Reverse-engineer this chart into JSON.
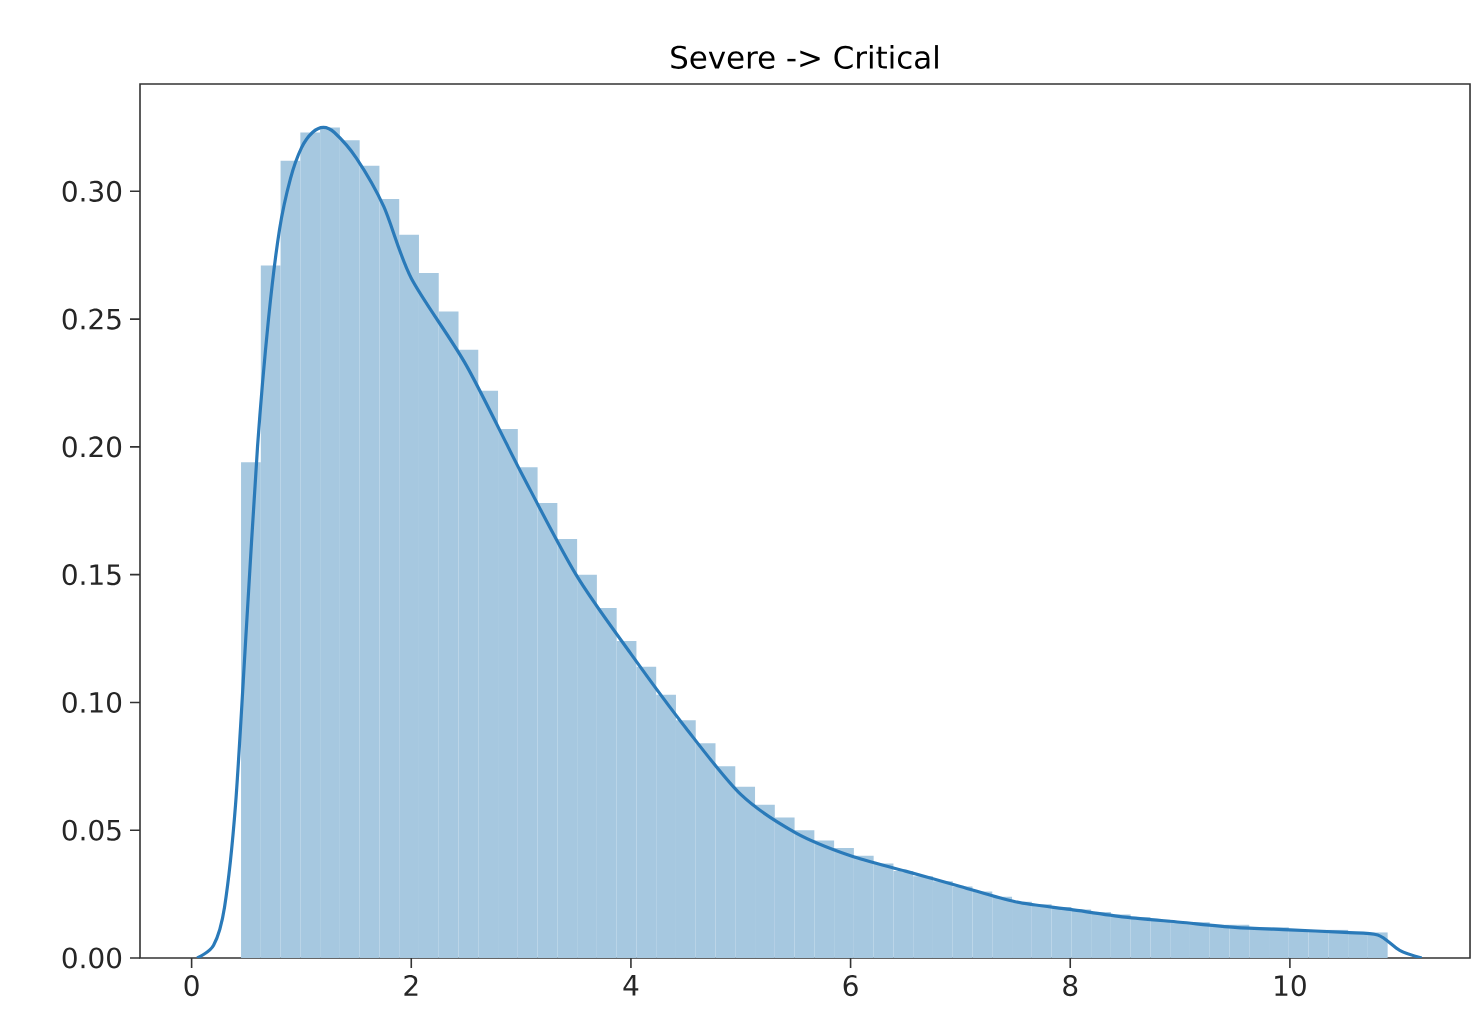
{
  "chart_data": {
    "type": "histogram",
    "title": "Severe -> Critical",
    "xlim": [
      -0.47,
      11.64
    ],
    "ylim": [
      0,
      0.342
    ],
    "xticks": [
      0,
      2,
      4,
      6,
      8,
      10
    ],
    "yticks": [
      {
        "value": 0,
        "label": "0.00"
      },
      {
        "value": 0.05,
        "label": "0.05"
      },
      {
        "value": 0.1,
        "label": "0.10"
      },
      {
        "value": 0.15,
        "label": "0.15"
      },
      {
        "value": 0.2,
        "label": "0.20"
      },
      {
        "value": 0.25,
        "label": "0.25"
      },
      {
        "value": 0.3,
        "label": "0.30"
      }
    ],
    "series": [
      {
        "color": "#a6c8e0",
        "bins": [
          0.45,
          0.63,
          0.81,
          0.99,
          1.17,
          1.35,
          1.53,
          1.71,
          1.89,
          2.07,
          2.25,
          2.43,
          2.61,
          2.79,
          2.97,
          3.15,
          3.33,
          3.51,
          3.69,
          3.87,
          4.05,
          4.23,
          4.41,
          4.59,
          4.77,
          4.95,
          5.13,
          5.31,
          5.49,
          5.67,
          5.85,
          6.03,
          6.21,
          6.39,
          6.57,
          6.75,
          6.93,
          7.11,
          7.29,
          7.47,
          7.65,
          7.83,
          8.01,
          8.19,
          8.37,
          8.55,
          8.73,
          8.91,
          9.09,
          9.27,
          9.45,
          9.63,
          9.81,
          9.99,
          10.17,
          10.35,
          10.53,
          10.71,
          10.89
        ],
        "values": [
          0.194,
          0.271,
          0.312,
          0.323,
          0.325,
          0.32,
          0.31,
          0.297,
          0.283,
          0.268,
          0.253,
          0.238,
          0.222,
          0.207,
          0.192,
          0.178,
          0.164,
          0.15,
          0.137,
          0.124,
          0.114,
          0.103,
          0.093,
          0.084,
          0.075,
          0.067,
          0.06,
          0.055,
          0.05,
          0.046,
          0.043,
          0.04,
          0.037,
          0.034,
          0.032,
          0.03,
          0.028,
          0.026,
          0.024,
          0.022,
          0.021,
          0.02,
          0.019,
          0.018,
          0.017,
          0.016,
          0.015,
          0.014,
          0.014,
          0.013,
          0.013,
          0.012,
          0.012,
          0.011,
          0.011,
          0.011,
          0.01,
          0.01
        ]
      },
      {
        "type": "line",
        "color": "#2a7ab9",
        "x": [
          0.05,
          0.2,
          0.3,
          0.4,
          0.5,
          0.6,
          0.7,
          0.8,
          0.9,
          1.0,
          1.1,
          1.2,
          1.3,
          1.5,
          1.75,
          2.0,
          2.5,
          3.0,
          3.5,
          4.0,
          4.5,
          5.0,
          5.5,
          6.0,
          6.5,
          7.0,
          7.5,
          8.0,
          8.5,
          9.0,
          9.5,
          10.0,
          10.5,
          10.8,
          11.0,
          11.2
        ],
        "values": [
          0,
          0.005,
          0.02,
          0.06,
          0.13,
          0.2,
          0.25,
          0.285,
          0.305,
          0.317,
          0.323,
          0.325,
          0.323,
          0.313,
          0.294,
          0.266,
          0.232,
          0.19,
          0.15,
          0.119,
          0.09,
          0.064,
          0.049,
          0.04,
          0.034,
          0.028,
          0.022,
          0.019,
          0.016,
          0.014,
          0.012,
          0.011,
          0.01,
          0.009,
          0.003,
          0
        ]
      }
    ]
  }
}
